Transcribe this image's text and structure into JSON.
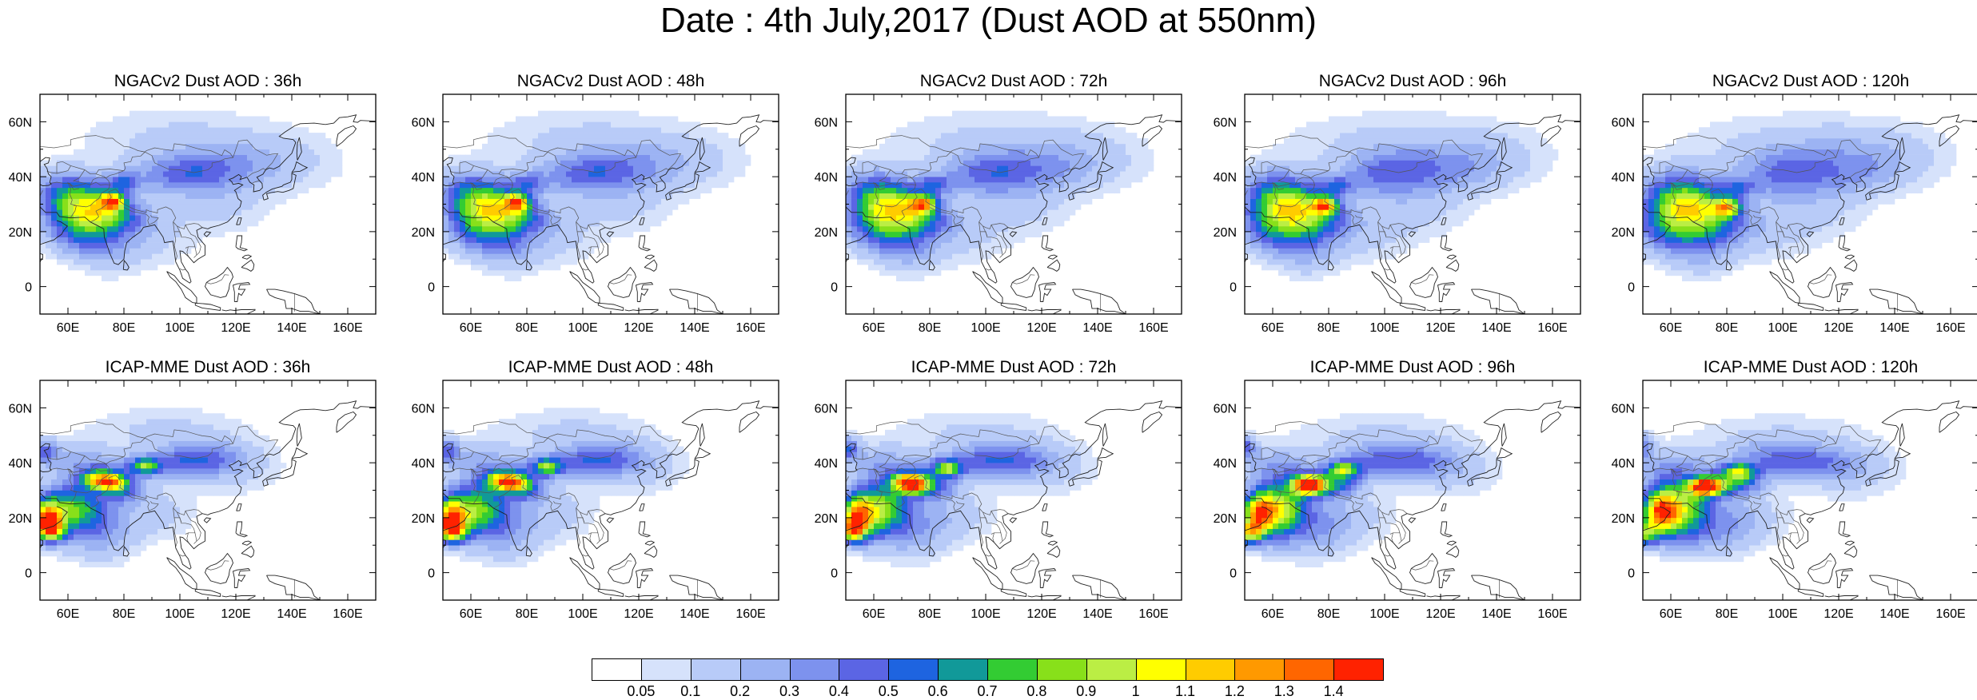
{
  "title": "Date : 4th July,2017 (Dust AOD at 550nm)",
  "panels": [
    {
      "title": "NGACv2 Dust AOD : 36h",
      "model": "ngac",
      "lead": 36
    },
    {
      "title": "NGACv2 Dust AOD : 48h",
      "model": "ngac",
      "lead": 48
    },
    {
      "title": "NGACv2 Dust AOD : 72h",
      "model": "ngac",
      "lead": 72
    },
    {
      "title": "NGACv2 Dust AOD : 96h",
      "model": "ngac",
      "lead": 96
    },
    {
      "title": "NGACv2 Dust AOD : 120h",
      "model": "ngac",
      "lead": 120
    },
    {
      "title": "ICAP-MME Dust AOD : 36h",
      "model": "icap",
      "lead": 36
    },
    {
      "title": "ICAP-MME Dust AOD : 48h",
      "model": "icap",
      "lead": 48
    },
    {
      "title": "ICAP-MME Dust AOD : 72h",
      "model": "icap",
      "lead": 72
    },
    {
      "title": "ICAP-MME Dust AOD : 96h",
      "model": "icap",
      "lead": 96
    },
    {
      "title": "ICAP-MME Dust AOD : 120h",
      "model": "icap",
      "lead": 120
    }
  ],
  "map_extent": {
    "lon": [
      50,
      170
    ],
    "lat": [
      -10,
      70
    ]
  },
  "lon_ticks": [
    "60E",
    "80E",
    "100E",
    "120E",
    "140E",
    "160E"
  ],
  "lat_ticks": [
    "60N",
    "40N",
    "20N",
    "0"
  ],
  "colorbar": {
    "labels": [
      "0.05",
      "0.1",
      "0.2",
      "0.3",
      "0.4",
      "0.5",
      "0.6",
      "0.7",
      "0.8",
      "0.9",
      "1",
      "1.1",
      "1.2",
      "1.3",
      "1.4"
    ],
    "colors": [
      "#ffffff",
      "#d6e2fb",
      "#b8cbf8",
      "#9cb3f3",
      "#7d92ee",
      "#5b65e4",
      "#1e64e0",
      "#119999",
      "#33cc33",
      "#88e01a",
      "#bbee44",
      "#ffff00",
      "#ffcc00",
      "#ff9900",
      "#ff6600",
      "#ff2200"
    ]
  }
}
